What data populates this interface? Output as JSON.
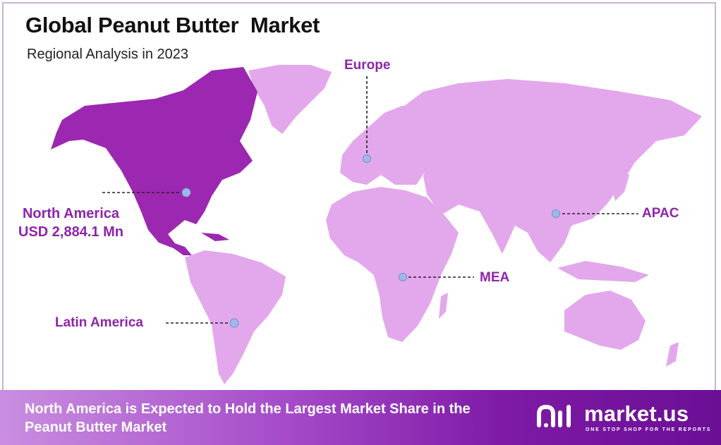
{
  "title": "Global Peanut Butter  Market",
  "subtitle": "Regional Analysis in 2023",
  "regions": {
    "europe": "Europe",
    "apac": "APAC",
    "mea": "MEA",
    "north_america": "North America",
    "north_america_value": "USD  2,884.1 Mn",
    "latin_america": "Latin America"
  },
  "highlighted_region": "North America",
  "colors": {
    "highlight": "#9c27b0",
    "land": "#e3a7ec",
    "label": "#8e24aa",
    "marker": "#9fb8e8"
  },
  "footer": {
    "text": "North America is Expected to Hold the Largest Market Share in the Peanut Butter Market"
  },
  "logo": {
    "name": "market.us",
    "tagline": "ONE STOP SHOP FOR THE REPORTS"
  }
}
